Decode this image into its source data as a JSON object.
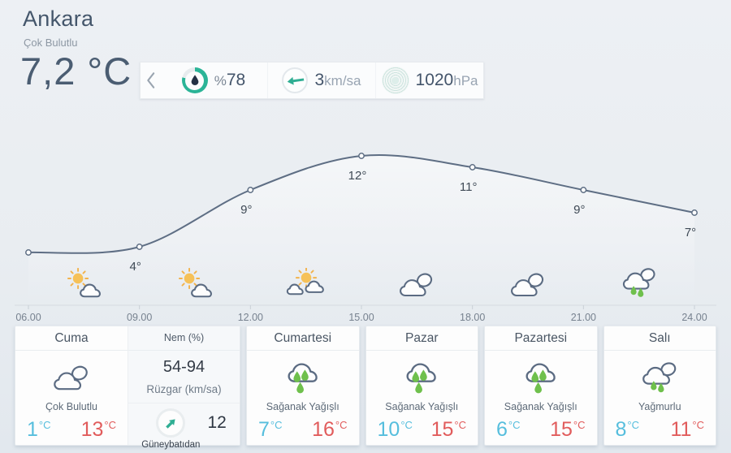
{
  "location": {
    "name": "Ankara",
    "condition": "Çok Bulutlu",
    "temperature_display": "7,2 °C"
  },
  "stats": {
    "chevron_icon": "chevron-left",
    "humidity": {
      "prefix": "%",
      "value": "78",
      "percent": 78,
      "icon": "droplet",
      "ring_color": "#2bb497"
    },
    "wind": {
      "value": "3",
      "unit": "km/sa",
      "icon": "arrow-left"
    },
    "pressure": {
      "value": "1020",
      "unit": "hPa",
      "icon": "concentric-rings"
    }
  },
  "chart_data": {
    "type": "line",
    "x": [
      "06.00",
      "09.00",
      "12.00",
      "15.00",
      "18.00",
      "21.00",
      "24.00"
    ],
    "values": [
      3.5,
      4,
      9,
      12,
      11,
      9,
      7
    ],
    "point_labels": [
      "",
      "4°",
      "9°",
      "12°",
      "11°",
      "9°",
      "7°"
    ],
    "hourly_icons": [
      "sun-cloud",
      "sun-cloud",
      "sun-two-clouds",
      "two-clouds",
      "two-clouds",
      "rain-two-clouds"
    ],
    "title": "",
    "xlabel": "",
    "ylabel": "",
    "line_color": "#5e6e84",
    "grid": false,
    "legend": false
  },
  "units": {
    "deg": "°C"
  },
  "details": {
    "humidity_label": "Nem (%)",
    "humidity_range": "54-94",
    "wind_label": "Rüzgar (km/sa)",
    "wind_direction": "Güneybatıdan",
    "wind_speed": "12",
    "wind_icon": "arrow-northeast"
  },
  "forecast": [
    {
      "day": "Cuma",
      "condition": "Çok Bulutlu",
      "low": "1",
      "high": "13",
      "icon": "two-clouds"
    },
    {
      "day": "Cumartesi",
      "condition": "Sağanak Yağışlı",
      "low": "7",
      "high": "16",
      "icon": "rain-cloud"
    },
    {
      "day": "Pazar",
      "condition": "Sağanak Yağışlı",
      "low": "10",
      "high": "15",
      "icon": "rain-cloud"
    },
    {
      "day": "Pazartesi",
      "condition": "Sağanak Yağışlı",
      "low": "6",
      "high": "15",
      "icon": "rain-cloud"
    },
    {
      "day": "Salı",
      "condition": "Yağmurlu",
      "low": "8",
      "high": "11",
      "icon": "rain-two-clouds"
    }
  ]
}
